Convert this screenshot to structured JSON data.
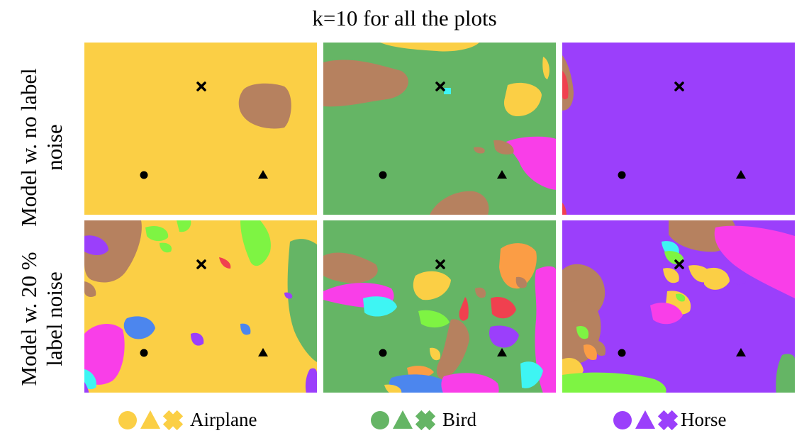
{
  "figure": {
    "title": "k=10 for all the plots",
    "row_labels": [
      {
        "line1": "Model w. no label",
        "line2": "noise"
      },
      {
        "line1": "Model w. 20 %",
        "line2": "label noise"
      }
    ],
    "legend": [
      {
        "label": "Airplane",
        "color": "#fbcf45"
      },
      {
        "label": "Bird",
        "color": "#65b565"
      },
      {
        "label": "Horse",
        "color": "#9b3ffb"
      }
    ],
    "colors": {
      "airplane": "#fbcf45",
      "bird": "#65b565",
      "horse": "#9b3ffb",
      "brown": "#b6815f",
      "pink": "#f93ee8",
      "lime": "#7ef443",
      "cyan": "#3ef5f3",
      "red": "#f0404f",
      "blue": "#4c86ee",
      "orange": "#fb9d45"
    },
    "markers": [
      "circle",
      "triangle",
      "cross"
    ]
  }
}
